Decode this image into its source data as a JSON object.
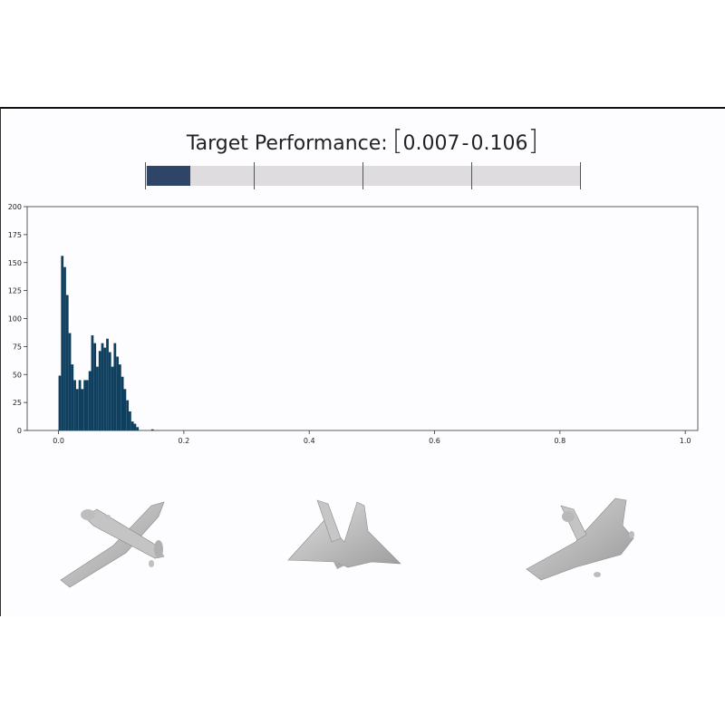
{
  "header": {
    "title_label": "Target Performance:",
    "range_low": "0.007",
    "range_high": "0.106"
  },
  "progress": {
    "fill_fraction": 0.1,
    "segments": 4,
    "fill_color": "#2f4568",
    "track_color": "#dedcdf"
  },
  "chart_data": {
    "type": "bar",
    "bar_color": "#0e3f5e",
    "xlim": [
      -0.05,
      1.02
    ],
    "ylim": [
      0,
      200
    ],
    "xticks": [
      "0.0",
      "0.2",
      "0.4",
      "0.6",
      "0.8",
      "1.0"
    ],
    "xtick_values": [
      0,
      0.2,
      0.4,
      0.6,
      0.8,
      1.0
    ],
    "yticks": [
      "0",
      "25",
      "50",
      "75",
      "100",
      "125",
      "150",
      "175",
      "200"
    ],
    "ytick_values": [
      0,
      25,
      50,
      75,
      100,
      125,
      150,
      175,
      200
    ],
    "bin_width": 0.004,
    "bin_start": 0.0,
    "values": [
      49,
      156,
      146,
      121,
      87,
      59,
      45,
      37,
      45,
      37,
      45,
      45,
      53,
      85,
      78,
      57,
      71,
      78,
      74,
      82,
      70,
      57,
      78,
      66,
      59,
      48,
      37,
      27,
      17,
      8,
      6,
      3,
      0,
      0,
      0,
      0,
      0,
      1
    ]
  },
  "shapes": [
    {
      "name": "propeller-airplane"
    },
    {
      "name": "delta-wing-jet"
    },
    {
      "name": "swept-wing-aircraft"
    }
  ]
}
